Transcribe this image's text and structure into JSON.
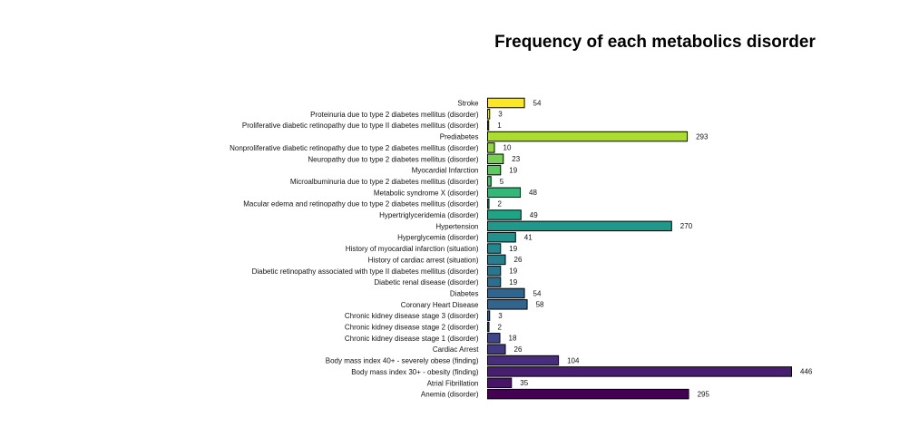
{
  "chart_data": {
    "type": "bar",
    "orientation": "horizontal",
    "title": "Frequency of each metabolics disorder",
    "xlabel": "",
    "ylabel": "",
    "grid": false,
    "xlim": [
      0,
      446
    ],
    "categories": [
      "Stroke",
      "Proteinuria due to type 2 diabetes mellitus (disorder)",
      "Proliferative diabetic retinopathy due to type II diabetes mellitus (disorder)",
      "Prediabetes",
      "Nonproliferative diabetic retinopathy due to type 2 diabetes mellitus (disorder)",
      "Neuropathy due to type 2 diabetes mellitus (disorder)",
      "Myocardial Infarction",
      "Microalbuminuria due to type 2 diabetes mellitus (disorder)",
      "Metabolic syndrome X (disorder)",
      "Macular edema and retinopathy due to type 2 diabetes mellitus (disorder)",
      "Hypertriglyceridemia (disorder)",
      "Hypertension",
      "Hyperglycemia (disorder)",
      "History of myocardial infarction (situation)",
      "History of cardiac arrest (situation)",
      "Diabetic retinopathy associated with type II diabetes mellitus (disorder)",
      "Diabetic renal disease (disorder)",
      "Diabetes",
      "Coronary Heart Disease",
      "Chronic kidney disease stage 3 (disorder)",
      "Chronic kidney disease stage 2 (disorder)",
      "Chronic kidney disease stage 1 (disorder)",
      "Cardiac Arrest",
      "Body mass index 40+ - severely obese (finding)",
      "Body mass index 30+ - obesity (finding)",
      "Atrial Fibrillation",
      "Anemia (disorder)"
    ],
    "values": [
      54,
      3,
      1,
      293,
      10,
      23,
      19,
      5,
      48,
      2,
      49,
      270,
      41,
      19,
      26,
      19,
      19,
      54,
      58,
      3,
      2,
      18,
      26,
      104,
      446,
      35,
      295
    ],
    "colors": [
      "#fde725",
      "#e2e418",
      "#c8e020",
      "#addc30",
      "#90d743",
      "#75d054",
      "#5ec962",
      "#48c16e",
      "#35b779",
      "#28ae80",
      "#20a486",
      "#1f9a8a",
      "#21918c",
      "#24878e",
      "#277f8e",
      "#2a768e",
      "#2c6e8e",
      "#2f658e",
      "#32658e",
      "#38598c",
      "#3b528b",
      "#404688",
      "#443983",
      "#472d7b",
      "#481f70",
      "#481467",
      "#440154"
    ]
  }
}
